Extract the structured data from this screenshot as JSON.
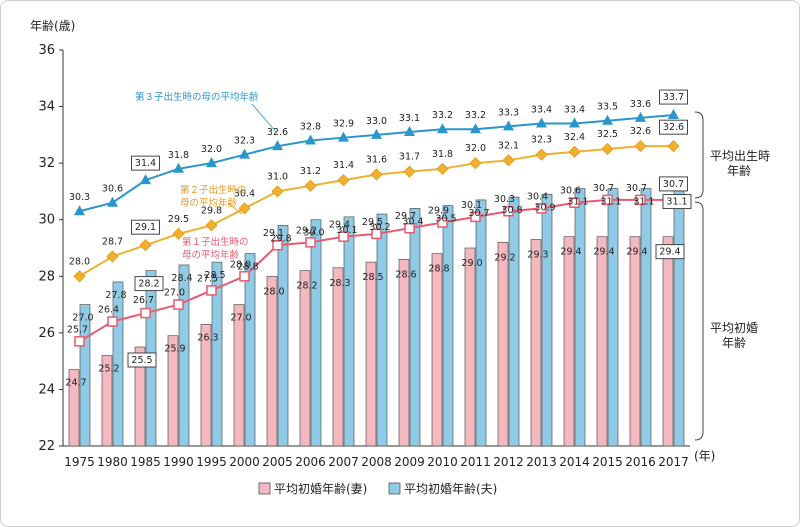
{
  "chart_data": {
    "type": "bar",
    "y_unit_label": "年齢(歳)",
    "x_unit_label": "(年)",
    "ylim": [
      22,
      36
    ],
    "yticks": [
      "22",
      "24",
      "26",
      "28",
      "30",
      "32",
      "34",
      "36"
    ],
    "categories": [
      "1975",
      "1980",
      "1985",
      "1990",
      "1995",
      "2000",
      "2005",
      "2006",
      "2007",
      "2008",
      "2009",
      "2010",
      "2011",
      "2012",
      "2013",
      "2014",
      "2015",
      "2016",
      "2017"
    ],
    "series": [
      {
        "name": "平均初婚年齢(妻)",
        "kind": "bar",
        "color": "#f4b8c1",
        "values": [
          24.7,
          25.2,
          25.5,
          25.9,
          26.3,
          27.0,
          28.0,
          28.2,
          28.3,
          28.5,
          28.6,
          28.8,
          29.0,
          29.2,
          29.3,
          29.4,
          29.4,
          29.4,
          29.4
        ],
        "labels": [
          "24.7",
          "25.2",
          "25.5",
          "25.9",
          "26.3",
          "27.0",
          "28.0",
          "28.2",
          "28.3",
          "28.5",
          "28.6",
          "28.8",
          "29.0",
          "29.2",
          "29.3",
          "29.4",
          "29.4",
          "29.4",
          "29.4"
        ]
      },
      {
        "name": "平均初婚年齢(夫)",
        "kind": "bar",
        "color": "#8fcbe6",
        "values": [
          27.0,
          27.8,
          28.2,
          28.4,
          28.5,
          28.8,
          29.8,
          30.0,
          30.1,
          30.2,
          30.4,
          30.5,
          30.7,
          30.8,
          30.9,
          31.1,
          31.1,
          31.1,
          31.1
        ],
        "labels": [
          "27.0",
          "27.8",
          "28.2",
          "28.4",
          "28.5",
          "28.8",
          "29.8",
          "30.0",
          "30.1",
          "30.2",
          "30.4",
          "30.5",
          "30.7",
          "30.8",
          "30.9",
          "31.1",
          "31.1",
          "31.1",
          "31.1"
        ]
      },
      {
        "name": "第１子出生時の母の平均年齢",
        "kind": "line",
        "color": "#e85a6e",
        "marker": "square",
        "values": [
          25.7,
          26.4,
          26.7,
          27.0,
          27.5,
          28.0,
          29.1,
          29.2,
          29.4,
          29.5,
          29.7,
          29.9,
          30.1,
          30.3,
          30.4,
          30.6,
          30.7,
          30.7,
          30.7
        ],
        "labels": [
          "25.7",
          "26.4",
          "26.7",
          "27.0",
          "27.5",
          "28.0",
          "29.1",
          "29.2",
          "29.4",
          "29.5",
          "29.7",
          "29.9",
          "30.1",
          "30.3",
          "30.4",
          "30.6",
          "30.7",
          "30.7",
          "30.7"
        ]
      },
      {
        "name": "第２子出生時の母の平均年齢",
        "kind": "line",
        "color": "#f0b030",
        "marker": "diamond",
        "values": [
          28.0,
          28.7,
          29.1,
          29.5,
          29.8,
          30.4,
          31.0,
          31.2,
          31.4,
          31.6,
          31.7,
          31.8,
          32.0,
          32.1,
          32.3,
          32.4,
          32.5,
          32.6,
          32.6
        ],
        "labels": [
          "28.0",
          "28.7",
          "29.1",
          "29.5",
          "29.8",
          "30.4",
          "31.0",
          "31.2",
          "31.4",
          "31.6",
          "31.7",
          "31.8",
          "32.0",
          "32.1",
          "32.3",
          "32.4",
          "32.5",
          "32.6",
          "32.6"
        ]
      },
      {
        "name": "第３子出生時の母の平均年齢",
        "kind": "line",
        "color": "#2b96cc",
        "marker": "triangle",
        "values": [
          30.3,
          30.6,
          31.4,
          31.8,
          32.0,
          32.3,
          32.6,
          32.8,
          32.9,
          33.0,
          33.1,
          33.2,
          33.2,
          33.3,
          33.4,
          33.4,
          33.5,
          33.6,
          33.7
        ],
        "labels": [
          "30.3",
          "30.6",
          "31.4",
          "31.8",
          "32.0",
          "32.3",
          "32.6",
          "32.8",
          "32.9",
          "33.0",
          "33.1",
          "33.2",
          "33.2",
          "33.3",
          "33.4",
          "33.4",
          "33.5",
          "33.6",
          "33.7"
        ]
      }
    ],
    "annotations": {
      "third": "第３子出生時の母の平均年齢",
      "second_line1": "第２子出生時の",
      "second_line2": "母の平均年齢",
      "first_line1": "第１子出生時の",
      "first_line2": "母の平均年齢"
    },
    "side_labels": {
      "birth_line1": "平均出生時",
      "birth_line2": "年齢",
      "marriage_line1": "平均初婚",
      "marriage_line2": "年齢"
    },
    "legend": [
      "平均初婚年齢(妻)",
      "平均初婚年齢(夫)"
    ],
    "legend_position": "bottom-center",
    "grid": false
  }
}
